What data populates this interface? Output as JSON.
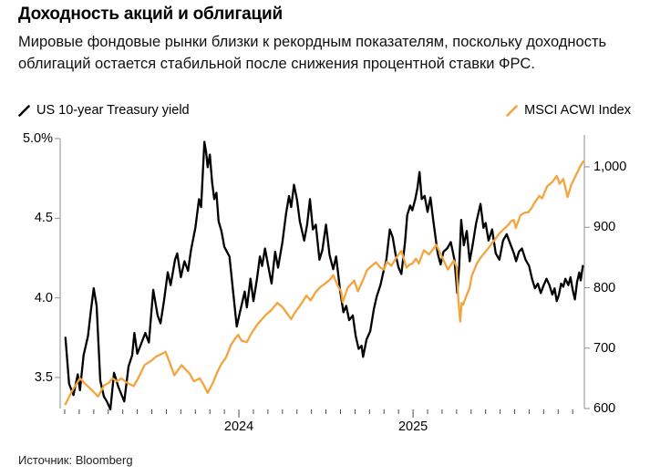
{
  "page": {
    "title": "Доходность акций и облигаций",
    "subtitle": "Мировые фондовые рынки близки к рекордным показателям, поскольку доходность облигаций остается стабильной после снижения процентной ставки ФРС.",
    "source": "Источник: Bloomberg"
  },
  "legend": {
    "treasury": {
      "label": "US 10-year Treasury yield",
      "color": "#000000"
    },
    "acwi": {
      "label": "MSCI ACWI Index",
      "color": "#F4A43C"
    }
  },
  "colors": {
    "axis": "#8f8f8f",
    "x_tick": "#4a4a4a",
    "background": "#ffffff"
  },
  "chart_data": {
    "type": "line",
    "title": "Доходность акций и облигаций",
    "x_axis": {
      "unit": "months since Jan 2023",
      "range": [
        -0.31,
        35.8
      ],
      "minor_ticks_every_month": true,
      "minor_tick_months": 36,
      "year_ticks": [
        {
          "label": "2024",
          "m": 12
        },
        {
          "label": "2025",
          "m": 24
        }
      ]
    },
    "y_left": {
      "label": "US 10-year Treasury yield (%)",
      "range": [
        3.305,
        5.02
      ],
      "ticks": [
        {
          "label": "5.0%",
          "v": 5.0
        },
        {
          "label": "4.5",
          "v": 4.5
        },
        {
          "label": "4.0",
          "v": 4.0
        },
        {
          "label": "3.5",
          "v": 3.5
        }
      ]
    },
    "y_right": {
      "label": "MSCI ACWI Index",
      "range": [
        600,
        1053
      ],
      "ticks": [
        {
          "label": "1,000",
          "v": 1000
        },
        {
          "label": "900",
          "v": 900
        },
        {
          "label": "800",
          "v": 800
        },
        {
          "label": "700",
          "v": 700
        },
        {
          "label": "600",
          "v": 600
        }
      ]
    },
    "legend_position": "top",
    "grid": false,
    "series": [
      {
        "name": "US 10-year Treasury yield",
        "axis": "left",
        "color": "#000000",
        "width": 2.3,
        "points": [
          [
            0.05,
            3.75
          ],
          [
            0.3,
            3.46
          ],
          [
            0.6,
            3.39
          ],
          [
            0.9,
            3.52
          ],
          [
            1.05,
            3.42
          ],
          [
            1.3,
            3.64
          ],
          [
            1.6,
            3.76
          ],
          [
            1.8,
            3.92
          ],
          [
            2.0,
            4.06
          ],
          [
            2.2,
            3.95
          ],
          [
            2.45,
            3.48
          ],
          [
            2.7,
            3.38
          ],
          [
            2.9,
            3.35
          ],
          [
            3.15,
            3.3
          ],
          [
            3.4,
            3.53
          ],
          [
            3.7,
            3.44
          ],
          [
            4.1,
            3.35
          ],
          [
            4.4,
            3.57
          ],
          [
            4.65,
            3.64
          ],
          [
            4.8,
            3.78
          ],
          [
            5.0,
            3.65
          ],
          [
            5.3,
            3.72
          ],
          [
            5.55,
            3.78
          ],
          [
            5.8,
            3.72
          ],
          [
            6.1,
            4.05
          ],
          [
            6.4,
            3.89
          ],
          [
            6.6,
            3.84
          ],
          [
            6.85,
            3.99
          ],
          [
            7.1,
            4.16
          ],
          [
            7.3,
            4.08
          ],
          [
            7.6,
            4.24
          ],
          [
            7.75,
            4.28
          ],
          [
            8.0,
            4.13
          ],
          [
            8.25,
            4.23
          ],
          [
            8.5,
            4.17
          ],
          [
            8.7,
            4.3
          ],
          [
            9.0,
            4.44
          ],
          [
            9.25,
            4.62
          ],
          [
            9.4,
            4.57
          ],
          [
            9.62,
            4.98
          ],
          [
            9.75,
            4.91
          ],
          [
            9.85,
            4.82
          ],
          [
            10.0,
            4.9
          ],
          [
            10.15,
            4.73
          ],
          [
            10.3,
            4.62
          ],
          [
            10.45,
            4.66
          ],
          [
            10.6,
            4.48
          ],
          [
            10.8,
            4.42
          ],
          [
            11.0,
            4.32
          ],
          [
            11.35,
            4.26
          ],
          [
            11.6,
            4.04
          ],
          [
            11.85,
            3.82
          ],
          [
            12.05,
            3.9
          ],
          [
            12.2,
            3.96
          ],
          [
            12.4,
            4.04
          ],
          [
            12.55,
            3.94
          ],
          [
            12.8,
            4.12
          ],
          [
            13.0,
            3.98
          ],
          [
            13.25,
            4.12
          ],
          [
            13.45,
            4.26
          ],
          [
            13.6,
            4.2
          ],
          [
            13.8,
            4.31
          ],
          [
            14.0,
            4.21
          ],
          [
            14.25,
            4.09
          ],
          [
            14.5,
            4.29
          ],
          [
            14.7,
            4.19
          ],
          [
            15.0,
            4.35
          ],
          [
            15.25,
            4.53
          ],
          [
            15.45,
            4.64
          ],
          [
            15.6,
            4.57
          ],
          [
            15.8,
            4.71
          ],
          [
            16.0,
            4.62
          ],
          [
            16.2,
            4.48
          ],
          [
            16.5,
            4.36
          ],
          [
            16.7,
            4.46
          ],
          [
            16.9,
            4.62
          ],
          [
            17.1,
            4.43
          ],
          [
            17.3,
            4.46
          ],
          [
            17.55,
            4.24
          ],
          [
            17.75,
            4.3
          ],
          [
            18.0,
            4.46
          ],
          [
            18.25,
            4.27
          ],
          [
            18.5,
            4.18
          ],
          [
            18.7,
            4.26
          ],
          [
            18.97,
            4.05
          ],
          [
            19.2,
            3.91
          ],
          [
            19.4,
            3.95
          ],
          [
            19.6,
            3.86
          ],
          [
            19.85,
            3.89
          ],
          [
            20.05,
            3.76
          ],
          [
            20.25,
            3.68
          ],
          [
            20.45,
            3.7
          ],
          [
            20.56,
            3.63
          ],
          [
            20.8,
            3.74
          ],
          [
            21.05,
            3.79
          ],
          [
            21.3,
            3.93
          ],
          [
            21.5,
            4.01
          ],
          [
            21.75,
            4.08
          ],
          [
            21.95,
            4.16
          ],
          [
            22.15,
            4.23
          ],
          [
            22.4,
            4.43
          ],
          [
            22.6,
            4.38
          ],
          [
            22.8,
            4.27
          ],
          [
            23.0,
            4.19
          ],
          [
            23.2,
            4.15
          ],
          [
            23.45,
            4.35
          ],
          [
            23.6,
            4.52
          ],
          [
            23.8,
            4.58
          ],
          [
            23.95,
            4.55
          ],
          [
            24.15,
            4.62
          ],
          [
            24.3,
            4.69
          ],
          [
            24.45,
            4.79
          ],
          [
            24.6,
            4.62
          ],
          [
            24.8,
            4.64
          ],
          [
            25.0,
            4.54
          ],
          [
            25.2,
            4.63
          ],
          [
            25.4,
            4.48
          ],
          [
            25.7,
            4.28
          ],
          [
            25.9,
            4.21
          ],
          [
            26.1,
            4.29
          ],
          [
            26.35,
            4.31
          ],
          [
            26.6,
            4.35
          ],
          [
            26.85,
            4.24
          ],
          [
            27.05,
            4.03
          ],
          [
            27.18,
            4.2
          ],
          [
            27.32,
            4.49
          ],
          [
            27.5,
            4.33
          ],
          [
            27.7,
            4.42
          ],
          [
            27.9,
            4.23
          ],
          [
            28.1,
            4.33
          ],
          [
            28.35,
            4.47
          ],
          [
            28.65,
            4.59
          ],
          [
            28.85,
            4.44
          ],
          [
            29.0,
            4.47
          ],
          [
            29.2,
            4.36
          ],
          [
            29.45,
            4.43
          ],
          [
            29.7,
            4.28
          ],
          [
            29.95,
            4.24
          ],
          [
            30.2,
            4.36
          ],
          [
            30.45,
            4.4
          ],
          [
            30.7,
            4.34
          ],
          [
            30.95,
            4.28
          ],
          [
            31.1,
            4.23
          ],
          [
            31.3,
            4.29
          ],
          [
            31.5,
            4.31
          ],
          [
            31.75,
            4.24
          ],
          [
            32.0,
            4.2
          ],
          [
            32.2,
            4.12
          ],
          [
            32.4,
            4.06
          ],
          [
            32.6,
            4.09
          ],
          [
            32.8,
            4.03
          ],
          [
            33.0,
            4.08
          ],
          [
            33.2,
            4.12
          ],
          [
            33.4,
            4.08
          ],
          [
            33.6,
            4.02
          ],
          [
            33.75,
            4.06
          ],
          [
            33.9,
            3.98
          ],
          [
            34.05,
            4.02
          ],
          [
            34.2,
            4.09
          ],
          [
            34.35,
            4.07
          ],
          [
            34.5,
            4.12
          ],
          [
            34.7,
            4.08
          ],
          [
            34.85,
            4.13
          ],
          [
            35.0,
            4.05
          ],
          [
            35.15,
            3.99
          ],
          [
            35.3,
            4.1
          ],
          [
            35.45,
            4.16
          ],
          [
            35.55,
            4.11
          ],
          [
            35.7,
            4.2
          ]
        ]
      },
      {
        "name": "MSCI ACWI Index",
        "axis": "right",
        "color": "#F4A43C",
        "width": 2.3,
        "points": [
          [
            0.05,
            607
          ],
          [
            0.5,
            629
          ],
          [
            1.05,
            650
          ],
          [
            1.4,
            641
          ],
          [
            1.8,
            632
          ],
          [
            2.3,
            620
          ],
          [
            2.7,
            638
          ],
          [
            3.0,
            642
          ],
          [
            3.3,
            650
          ],
          [
            3.6,
            645
          ],
          [
            3.9,
            650
          ],
          [
            4.2,
            644
          ],
          [
            4.75,
            637
          ],
          [
            5.1,
            652
          ],
          [
            5.5,
            672
          ],
          [
            5.95,
            679
          ],
          [
            6.3,
            686
          ],
          [
            6.65,
            690
          ],
          [
            6.95,
            694
          ],
          [
            7.2,
            678
          ],
          [
            7.55,
            655
          ],
          [
            8.05,
            672
          ],
          [
            8.35,
            664
          ],
          [
            8.6,
            658
          ],
          [
            8.9,
            645
          ],
          [
            9.3,
            650
          ],
          [
            9.6,
            638
          ],
          [
            9.85,
            626
          ],
          [
            10.2,
            642
          ],
          [
            10.5,
            660
          ],
          [
            10.8,
            674
          ],
          [
            11.1,
            684
          ],
          [
            11.45,
            705
          ],
          [
            11.75,
            716
          ],
          [
            11.95,
            722
          ],
          [
            12.2,
            712
          ],
          [
            12.55,
            710
          ],
          [
            12.9,
            726
          ],
          [
            13.3,
            740
          ],
          [
            13.6,
            748
          ],
          [
            13.9,
            756
          ],
          [
            14.2,
            762
          ],
          [
            14.65,
            775
          ],
          [
            15.0,
            768
          ],
          [
            15.3,
            758
          ],
          [
            15.6,
            748
          ],
          [
            15.9,
            760
          ],
          [
            16.2,
            770
          ],
          [
            16.5,
            781
          ],
          [
            16.65,
            787
          ],
          [
            16.95,
            779
          ],
          [
            17.3,
            793
          ],
          [
            17.6,
            801
          ],
          [
            17.95,
            807
          ],
          [
            18.3,
            814
          ],
          [
            18.5,
            821
          ],
          [
            18.8,
            804
          ],
          [
            19.05,
            793
          ],
          [
            19.15,
            776
          ],
          [
            19.5,
            800
          ],
          [
            19.95,
            812
          ],
          [
            20.2,
            794
          ],
          [
            20.5,
            810
          ],
          [
            20.85,
            830
          ],
          [
            21.15,
            836
          ],
          [
            21.45,
            842
          ],
          [
            21.75,
            833
          ],
          [
            22.0,
            830
          ],
          [
            22.2,
            843
          ],
          [
            22.5,
            836
          ],
          [
            22.85,
            850
          ],
          [
            23.2,
            861
          ],
          [
            23.55,
            833
          ],
          [
            23.75,
            838
          ],
          [
            23.95,
            840
          ],
          [
            24.2,
            848
          ],
          [
            24.4,
            840
          ],
          [
            24.75,
            862
          ],
          [
            25.1,
            855
          ],
          [
            25.6,
            871
          ],
          [
            25.9,
            856
          ],
          [
            26.4,
            830
          ],
          [
            26.8,
            845
          ],
          [
            27.0,
            835
          ],
          [
            27.12,
            780
          ],
          [
            27.25,
            744
          ],
          [
            27.35,
            775
          ],
          [
            27.45,
            772
          ],
          [
            27.65,
            785
          ],
          [
            27.9,
            800
          ],
          [
            28.05,
            820
          ],
          [
            28.4,
            840
          ],
          [
            28.6,
            848
          ],
          [
            29.0,
            860
          ],
          [
            29.4,
            872
          ],
          [
            29.65,
            880
          ],
          [
            29.95,
            890
          ],
          [
            30.3,
            898
          ],
          [
            30.6,
            905
          ],
          [
            30.75,
            910
          ],
          [
            30.95,
            912
          ],
          [
            31.08,
            899
          ],
          [
            31.4,
            920
          ],
          [
            31.7,
            924
          ],
          [
            31.95,
            925
          ],
          [
            32.2,
            933
          ],
          [
            32.35,
            940
          ],
          [
            32.7,
            952
          ],
          [
            32.9,
            948
          ],
          [
            33.1,
            960
          ],
          [
            33.25,
            968
          ],
          [
            33.6,
            975
          ],
          [
            33.9,
            985
          ],
          [
            34.1,
            972
          ],
          [
            34.35,
            980
          ],
          [
            34.65,
            950
          ],
          [
            34.9,
            970
          ],
          [
            35.1,
            980
          ],
          [
            35.3,
            990
          ],
          [
            35.5,
            1000
          ],
          [
            35.65,
            1006
          ],
          [
            35.75,
            1009
          ]
        ]
      }
    ]
  }
}
